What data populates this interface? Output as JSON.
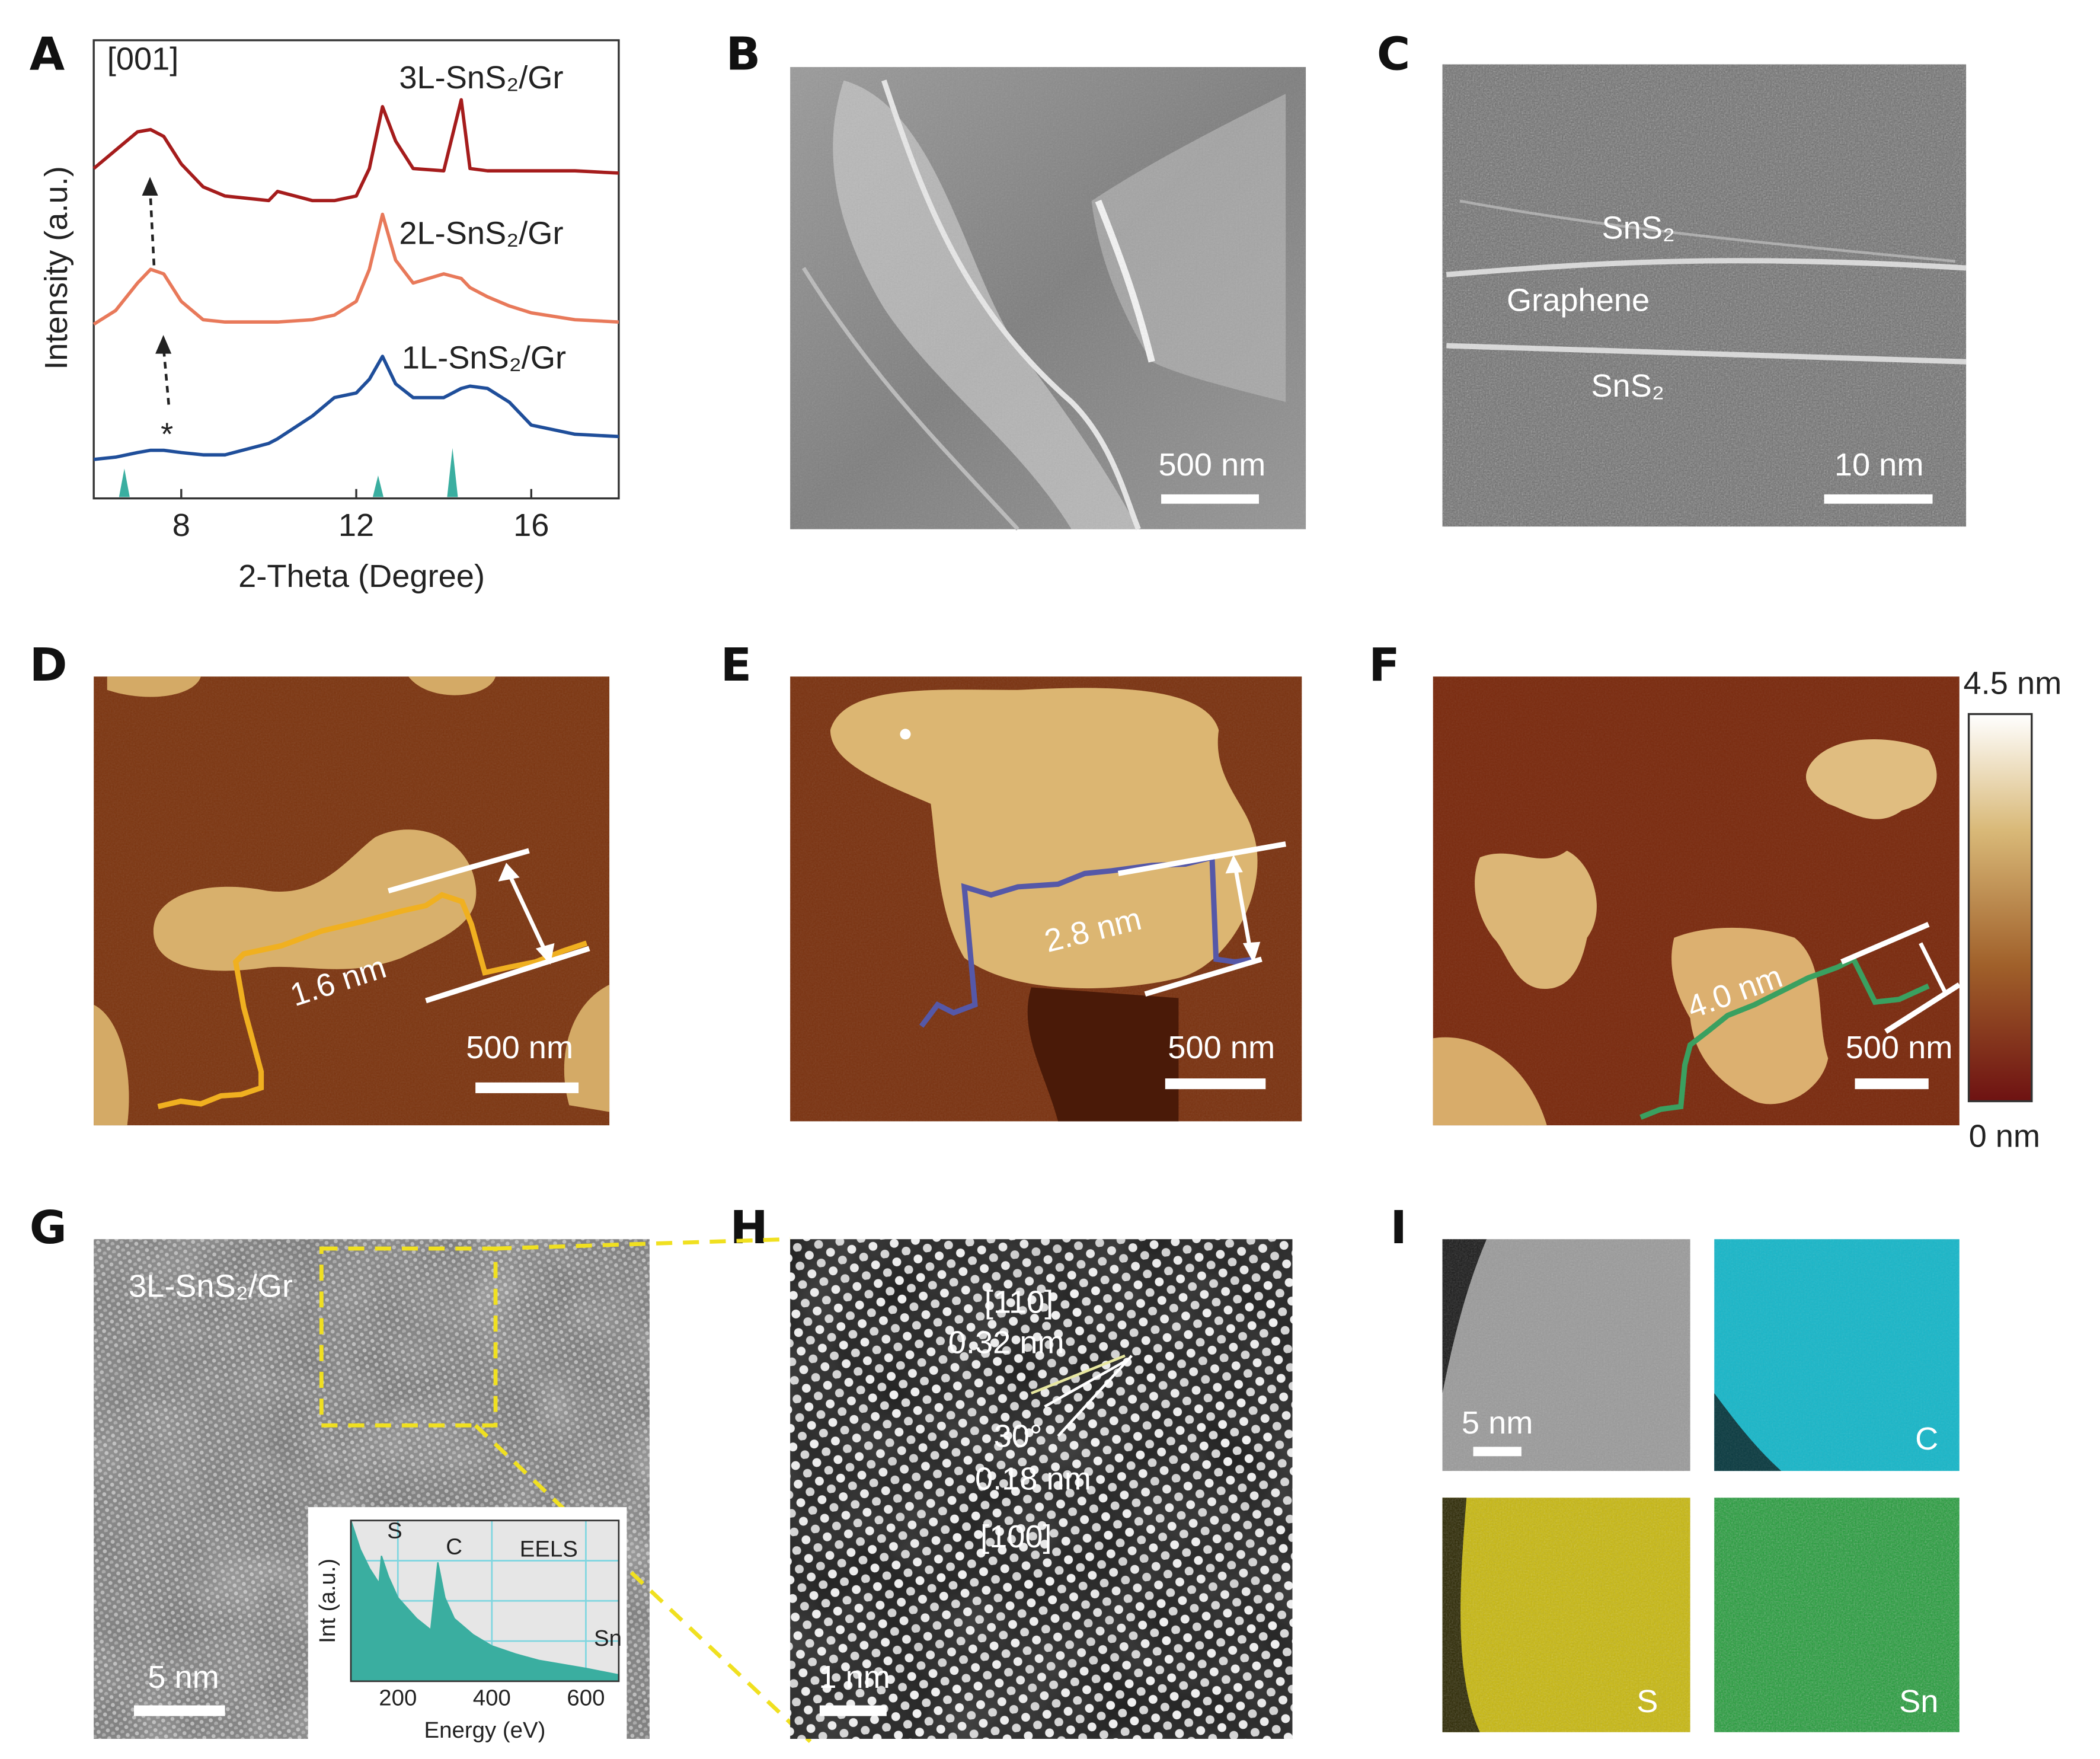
{
  "chart_data": [
    {
      "type": "line",
      "xlabel": "2-Theta (Degree)",
      "ylabel": "Intensity (a.u.)",
      "annotations": [
        "[001]",
        "*"
      ],
      "xlim": [
        6,
        18
      ],
      "xticks": [
        8,
        12,
        16
      ],
      "ylim": [
        0,
        10
      ],
      "x": [
        6,
        6.5,
        7,
        7.3,
        7.6,
        8,
        8.5,
        9,
        10,
        10.2,
        11,
        11.5,
        12,
        12.3,
        12.6,
        12.9,
        13.3,
        14,
        14.4,
        14.6,
        15,
        15.5,
        16,
        17,
        18
      ],
      "series": [
        {
          "name": "3L-SnS₂/Gr",
          "color": "#a51c1c",
          "values": [
            7.2,
            7.6,
            8.0,
            8.05,
            7.9,
            7.3,
            6.8,
            6.6,
            6.5,
            6.7,
            6.5,
            6.5,
            6.6,
            7.2,
            8.55,
            7.8,
            7.2,
            7.15,
            8.7,
            7.2,
            7.15,
            7.15,
            7.15,
            7.15,
            7.1
          ]
        },
        {
          "name": "2L-SnS₂/Gr",
          "color": "#e8795a",
          "values": [
            3.8,
            4.1,
            4.7,
            5.0,
            4.9,
            4.3,
            3.9,
            3.85,
            3.85,
            3.85,
            3.9,
            4.0,
            4.3,
            5.0,
            6.2,
            5.2,
            4.7,
            4.9,
            4.8,
            4.6,
            4.4,
            4.2,
            4.05,
            3.9,
            3.85
          ]
        },
        {
          "name": "1L-SnS₂/Gr",
          "color": "#1f4e9a",
          "values": [
            0.85,
            0.9,
            1.0,
            1.05,
            1.05,
            1.0,
            0.95,
            0.95,
            1.2,
            1.3,
            1.8,
            2.2,
            2.3,
            2.6,
            3.1,
            2.5,
            2.2,
            2.2,
            2.4,
            2.45,
            2.4,
            2.1,
            1.6,
            1.4,
            1.35
          ]
        }
      ],
      "reference": {
        "color": "#3aaea0",
        "x": [
          6.7,
          12.5,
          14.2
        ],
        "values": [
          0.65,
          0.5,
          1.1
        ]
      }
    },
    {
      "type": "area",
      "title": "EELS",
      "xlabel": "Energy (eV)",
      "ylabel": "Int (a.u.)",
      "annotations": [
        "S",
        "C",
        "Sn"
      ],
      "xlim": [
        100,
        670
      ],
      "xticks": [
        200,
        400,
        600
      ],
      "ylim": [
        0,
        10
      ],
      "grid": true,
      "color": "#3aaea0",
      "x": [
        100,
        120,
        140,
        160,
        165,
        180,
        200,
        240,
        270,
        285,
        300,
        320,
        360,
        400,
        450,
        500,
        600,
        670
      ],
      "values": [
        10,
        8.2,
        7,
        6.1,
        7.8,
        6.5,
        5.2,
        3.9,
        3.2,
        7.4,
        5.2,
        3.9,
        2.9,
        2.2,
        1.7,
        1.3,
        0.8,
        0.4
      ]
    }
  ],
  "panels": [
    {
      "label": "A"
    },
    {
      "label": "B",
      "scale_bar": "500 nm"
    },
    {
      "label": "C",
      "texts": [
        "SnS₂",
        "Graphene",
        "SnS₂"
      ],
      "scale_bar": "10 nm"
    },
    {
      "label": "D",
      "step_height": "1.6 nm",
      "scale_bar": "500 nm"
    },
    {
      "label": "E",
      "step_height": "2.8 nm",
      "scale_bar": "500 nm"
    },
    {
      "label": "F",
      "step_height": "4.0 nm",
      "scale_bar": "500 nm",
      "colorbar": [
        "4.5 nm",
        "0 nm"
      ]
    },
    {
      "label": "G",
      "texts": [
        "3L-SnS₂/Gr"
      ],
      "scale_bar": "5 nm"
    },
    {
      "label": "H",
      "texts": [
        "[110]",
        "0.32 nm",
        "30°",
        "0.18 nm",
        "[100]"
      ],
      "scale_bar": "1 nm"
    },
    {
      "label": "I",
      "texts": [
        "C",
        "S",
        "Sn"
      ],
      "scale_bar": "5 nm"
    }
  ]
}
